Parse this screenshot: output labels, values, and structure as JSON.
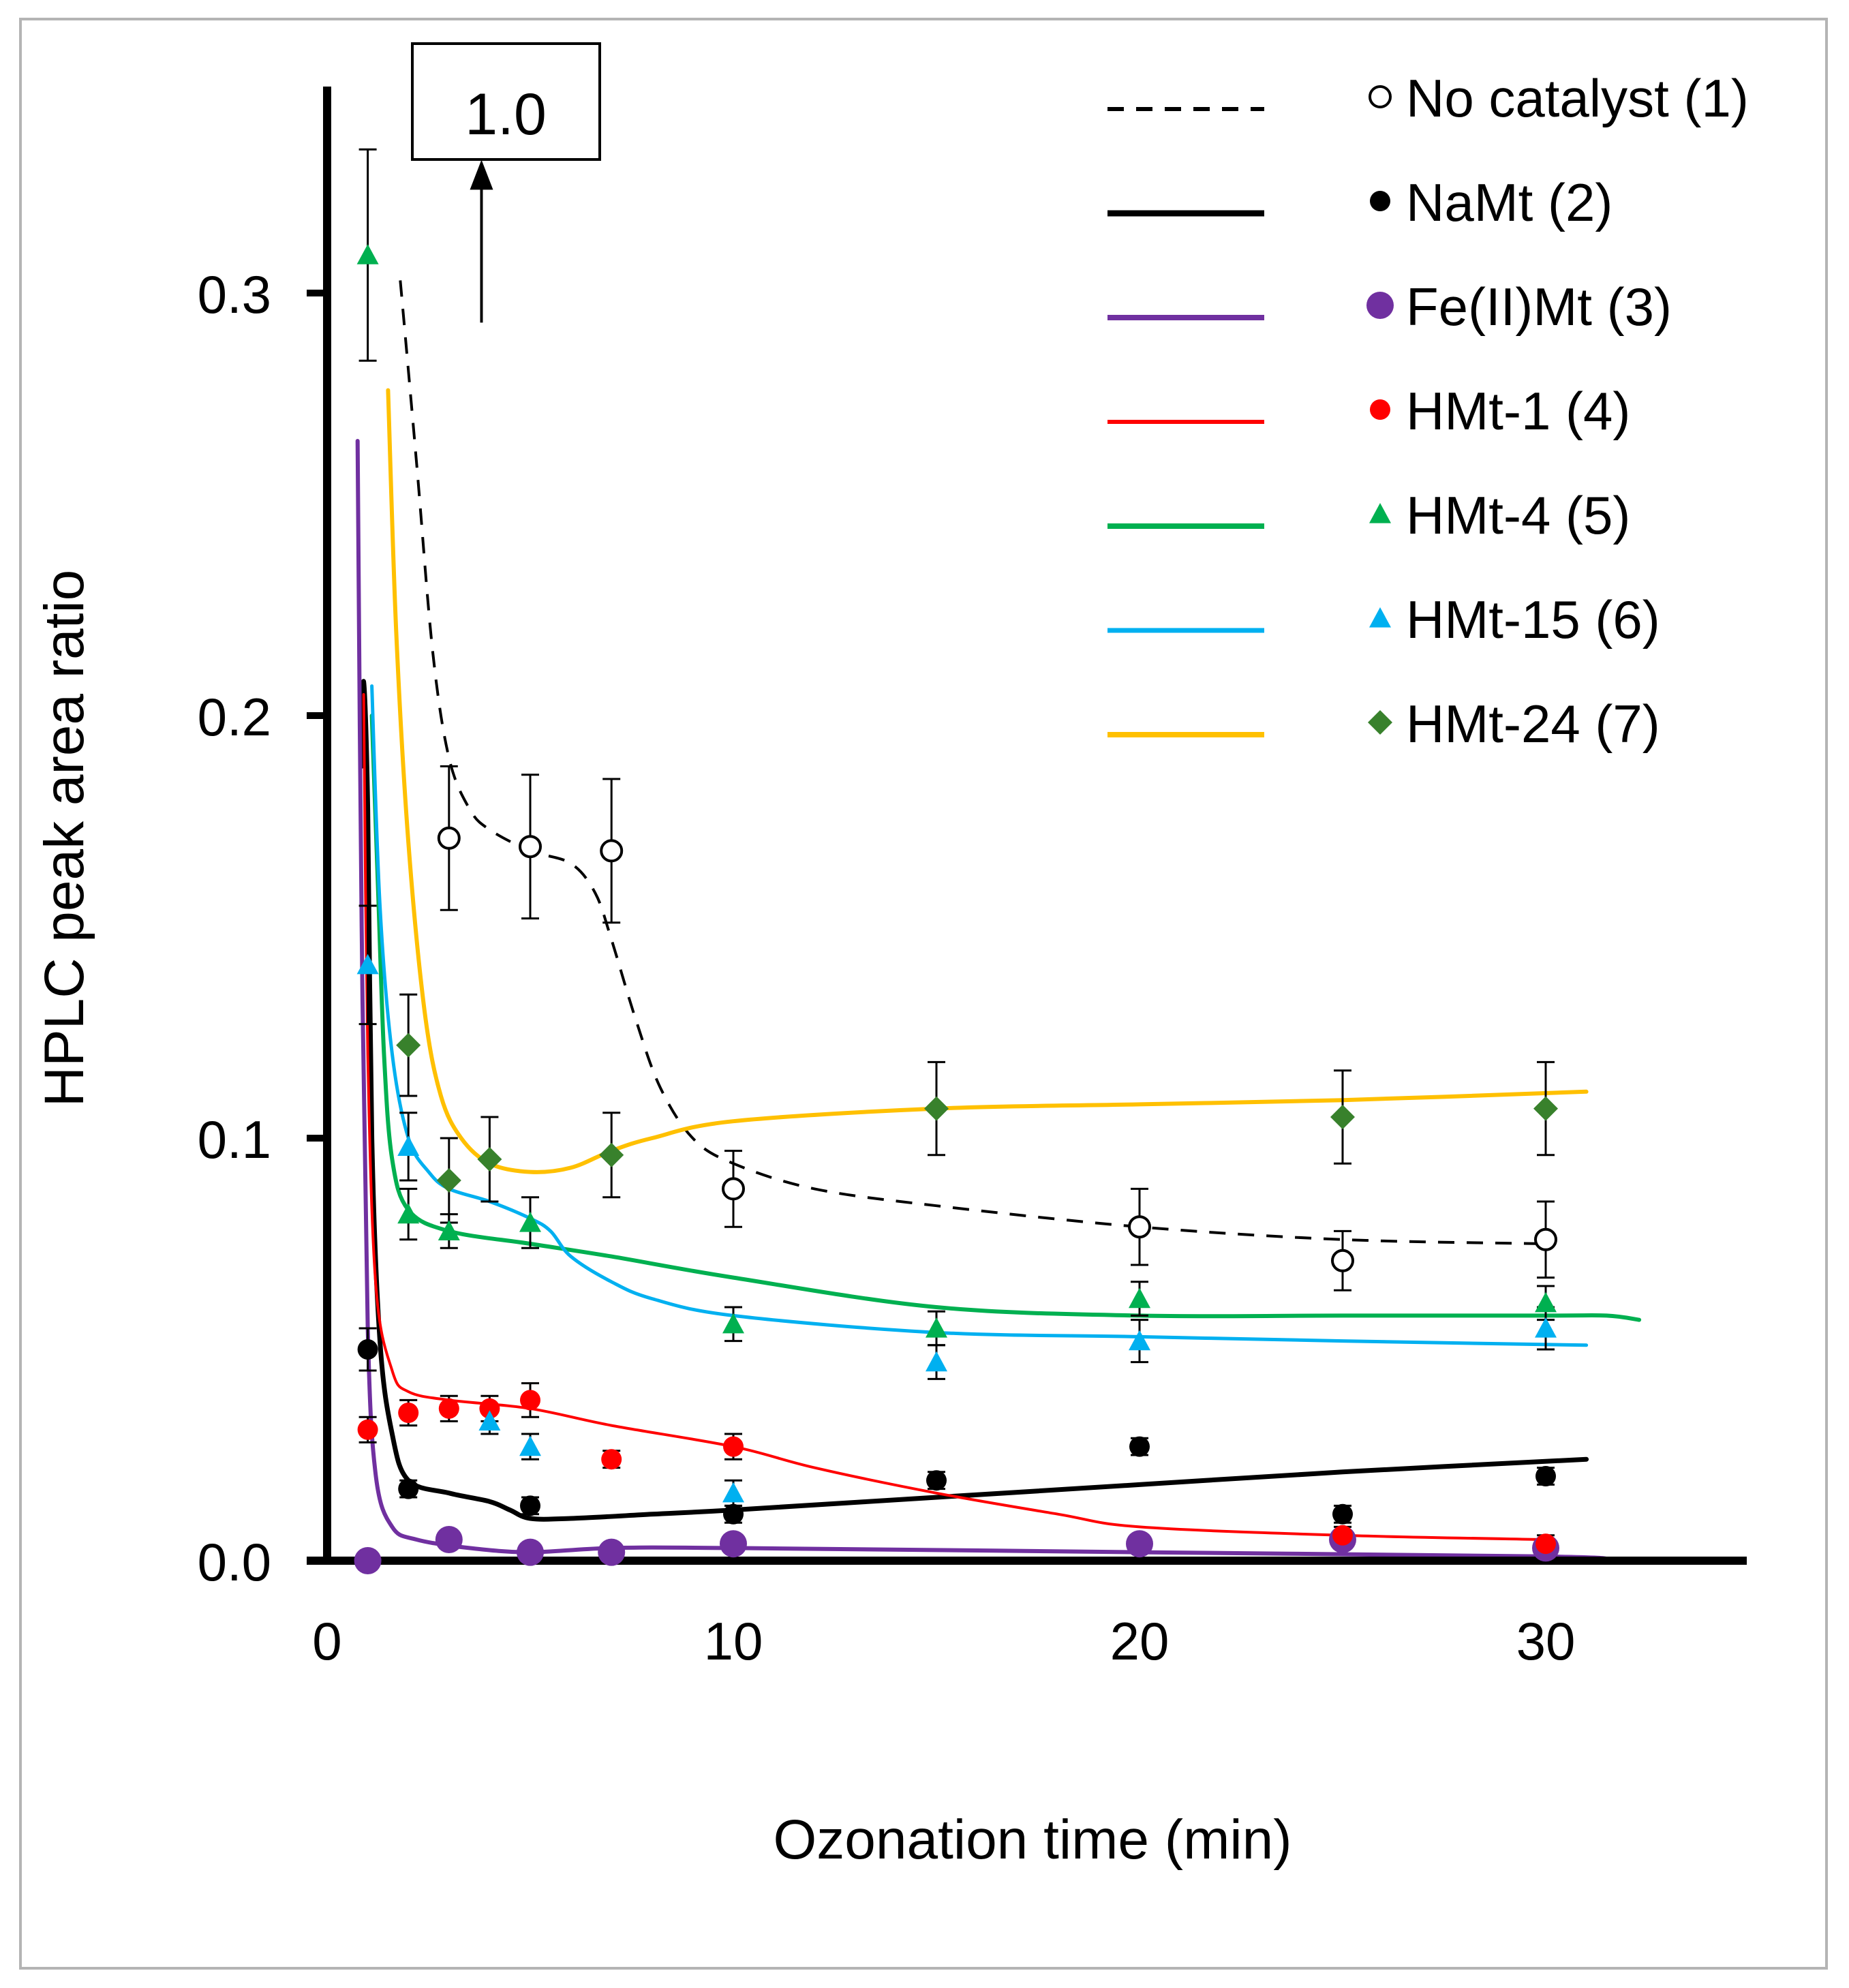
{
  "chart_data": {
    "type": "scatter",
    "xlabel": "Ozonation time (min)",
    "ylabel": "HPLC peak area ratio",
    "xlim": [
      0,
      35
    ],
    "ylim": [
      0,
      0.35
    ],
    "x_ticks": [
      {
        "value": 0,
        "label": "0"
      },
      {
        "value": 10,
        "label": "10"
      },
      {
        "value": 20,
        "label": "20"
      },
      {
        "value": 30,
        "label": "30"
      }
    ],
    "y_ticks": [
      {
        "value": 0,
        "label": "0.0"
      },
      {
        "value": 0.1,
        "label": "0.1"
      },
      {
        "value": 0.2,
        "label": "0.2"
      },
      {
        "value": 0.3,
        "label": "0.3"
      }
    ],
    "annotation": {
      "label": "1.0",
      "arrow_x": 3.8,
      "arrow_y_from": 0.293,
      "arrow_y_to": 0.328
    },
    "legend_position": "top-right",
    "series": [
      {
        "name": "No catalyst (1)",
        "color": "#000000",
        "marker": "open-circle",
        "line": "dashed",
        "line_width": 4,
        "points": [
          [
            3,
            0.171
          ],
          [
            5,
            0.169
          ],
          [
            7,
            0.168
          ],
          [
            10,
            0.088
          ],
          [
            20,
            0.079
          ],
          [
            25,
            0.071
          ],
          [
            30,
            0.076
          ]
        ],
        "errors": [
          0.017,
          0.017,
          0.017,
          0.009,
          0.009,
          0.007,
          0.009
        ],
        "curve": [
          [
            1.8,
            0.303
          ],
          [
            2.2,
            0.26
          ],
          [
            2.6,
            0.215
          ],
          [
            3.0,
            0.19
          ],
          [
            3.5,
            0.178
          ],
          [
            4.0,
            0.173
          ],
          [
            5.0,
            0.168
          ],
          [
            6.0,
            0.165
          ],
          [
            6.6,
            0.158
          ],
          [
            7.0,
            0.147
          ],
          [
            7.6,
            0.128
          ],
          [
            8.2,
            0.112
          ],
          [
            9.0,
            0.1
          ],
          [
            10,
            0.094
          ],
          [
            12,
            0.088
          ],
          [
            15,
            0.084
          ],
          [
            20,
            0.079
          ],
          [
            25,
            0.076
          ],
          [
            30,
            0.075
          ]
        ]
      },
      {
        "name": "NaMt (2)",
        "color": "#000000",
        "marker": "filled-circle",
        "line": "solid",
        "line_width": 7,
        "points": [
          [
            1,
            0.05
          ],
          [
            2,
            0.017
          ],
          [
            5,
            0.013
          ],
          [
            10,
            0.011
          ],
          [
            15,
            0.019
          ],
          [
            20,
            0.027
          ],
          [
            25,
            0.011
          ],
          [
            30,
            0.02
          ]
        ],
        "errors": [
          0.005,
          0.002,
          0.002,
          0.002,
          0.002,
          0.002,
          0.002,
          0.002
        ],
        "curve": [
          [
            0.85,
            0.188
          ],
          [
            0.9,
            0.208
          ],
          [
            1.0,
            0.178
          ],
          [
            1.1,
            0.1
          ],
          [
            1.3,
            0.052
          ],
          [
            1.6,
            0.03
          ],
          [
            2.0,
            0.019
          ],
          [
            3.0,
            0.016
          ],
          [
            4.0,
            0.014
          ],
          [
            4.5,
            0.012
          ],
          [
            5.0,
            0.01
          ],
          [
            6.0,
            0.01
          ],
          [
            8.0,
            0.011
          ],
          [
            10,
            0.012
          ],
          [
            15,
            0.015
          ],
          [
            20,
            0.018
          ],
          [
            25,
            0.021
          ],
          [
            31,
            0.024
          ]
        ]
      },
      {
        "name": "Fe(II)Mt (3)",
        "color": "#7030A0",
        "marker": "filled-circle-large",
        "line": "solid",
        "line_width": 6,
        "points": [
          [
            1,
            0
          ],
          [
            3,
            0.005
          ],
          [
            5,
            0.002
          ],
          [
            7,
            0.002
          ],
          [
            10,
            0.004
          ],
          [
            20,
            0.004
          ],
          [
            25,
            0.005
          ],
          [
            30,
            0.003
          ]
        ],
        "errors": [],
        "curve": [
          [
            0.75,
            0.265
          ],
          [
            0.85,
            0.15
          ],
          [
            1.0,
            0.055
          ],
          [
            1.2,
            0.02
          ],
          [
            1.6,
            0.008
          ],
          [
            2.2,
            0.005
          ],
          [
            3.5,
            0.003
          ],
          [
            5.0,
            0.002
          ],
          [
            7.0,
            0.003
          ],
          [
            10,
            0.003
          ],
          [
            20,
            0.002
          ],
          [
            30,
            0.001
          ],
          [
            31.6,
            0.0003
          ]
        ]
      },
      {
        "name": "HMt-1 (4)",
        "color": "#FF0000",
        "marker": "filled-circle",
        "line": "solid",
        "line_width": 4,
        "points": [
          [
            1,
            0.031
          ],
          [
            2,
            0.035
          ],
          [
            3,
            0.036
          ],
          [
            4,
            0.036
          ],
          [
            5,
            0.038
          ],
          [
            7,
            0.024
          ],
          [
            10,
            0.027
          ],
          [
            25,
            0.006
          ],
          [
            30,
            0.004
          ]
        ],
        "errors": [
          0.003,
          0.003,
          0.003,
          0.003,
          0.004,
          0.002,
          0.003,
          0.002,
          0.002
        ],
        "curve": [
          [
            0.9,
            0.205
          ],
          [
            1.0,
            0.12
          ],
          [
            1.2,
            0.065
          ],
          [
            1.6,
            0.045
          ],
          [
            2.0,
            0.04
          ],
          [
            3.0,
            0.038
          ],
          [
            5.0,
            0.036
          ],
          [
            7.0,
            0.032
          ],
          [
            10,
            0.027
          ],
          [
            12,
            0.022
          ],
          [
            15,
            0.016
          ],
          [
            18,
            0.011
          ],
          [
            20,
            0.008
          ],
          [
            25,
            0.006
          ],
          [
            30,
            0.005
          ]
        ]
      },
      {
        "name": "HMt-4 (5)",
        "color": "#00B050",
        "marker": "filled-triangle",
        "line": "solid",
        "line_width": 6,
        "points": [
          [
            1,
            0.309
          ],
          [
            2,
            0.082
          ],
          [
            3,
            0.078
          ],
          [
            5,
            0.08
          ],
          [
            10,
            0.056
          ],
          [
            15,
            0.055
          ],
          [
            20,
            0.062
          ],
          [
            30,
            0.061
          ]
        ],
        "errors": [
          0.025,
          0.006,
          0.004,
          0.006,
          0.004,
          0.004,
          0.004,
          0.004
        ],
        "curve": [
          [
            1.1,
            0.2
          ],
          [
            1.25,
            0.16
          ],
          [
            1.4,
            0.12
          ],
          [
            1.6,
            0.095
          ],
          [
            2.0,
            0.083
          ],
          [
            3.0,
            0.078
          ],
          [
            5.0,
            0.075
          ],
          [
            7.0,
            0.072
          ],
          [
            10,
            0.067
          ],
          [
            15,
            0.06
          ],
          [
            20,
            0.058
          ],
          [
            25,
            0.058
          ],
          [
            30,
            0.058
          ],
          [
            31.5,
            0.058
          ],
          [
            32.3,
            0.057
          ]
        ]
      },
      {
        "name": "HMt-15 (6)",
        "color": "#00B0F0",
        "marker": "filled-triangle",
        "line": "solid",
        "line_width": 5,
        "points": [
          [
            1,
            0.141
          ],
          [
            2,
            0.098
          ],
          [
            4,
            0.033
          ],
          [
            5,
            0.027
          ],
          [
            10,
            0.016
          ],
          [
            15,
            0.047
          ],
          [
            20,
            0.052
          ],
          [
            30,
            0.055
          ]
        ],
        "errors": [
          0.014,
          0.008,
          0.003,
          0.003,
          0.003,
          0.004,
          0.005,
          0.005
        ],
        "curve": [
          [
            1.1,
            0.207
          ],
          [
            1.3,
            0.155
          ],
          [
            1.6,
            0.12
          ],
          [
            2.0,
            0.1
          ],
          [
            2.5,
            0.092
          ],
          [
            3.0,
            0.088
          ],
          [
            4.0,
            0.085
          ],
          [
            5.0,
            0.081
          ],
          [
            5.5,
            0.078
          ],
          [
            6.0,
            0.072
          ],
          [
            7.0,
            0.066
          ],
          [
            8.0,
            0.062
          ],
          [
            10,
            0.058
          ],
          [
            15,
            0.054
          ],
          [
            20,
            0.053
          ],
          [
            25,
            0.052
          ],
          [
            31,
            0.051
          ]
        ]
      },
      {
        "name": "HMt-24 (7)",
        "color": "#FFC000",
        "marker": "filled-diamond",
        "marker_color": "#38812C",
        "line": "solid",
        "line_width": 6,
        "points": [
          [
            2,
            0.122
          ],
          [
            3,
            0.09
          ],
          [
            4,
            0.095
          ],
          [
            7,
            0.096
          ],
          [
            15,
            0.107
          ],
          [
            25,
            0.105
          ],
          [
            30,
            0.107
          ]
        ],
        "errors": [
          0.012,
          0.01,
          0.01,
          0.01,
          0.011,
          0.011,
          0.011
        ],
        "curve": [
          [
            1.5,
            0.277
          ],
          [
            1.7,
            0.22
          ],
          [
            2.0,
            0.17
          ],
          [
            2.4,
            0.13
          ],
          [
            2.8,
            0.11
          ],
          [
            3.3,
            0.1
          ],
          [
            4.0,
            0.094
          ],
          [
            5.0,
            0.092
          ],
          [
            6.0,
            0.093
          ],
          [
            7.0,
            0.097
          ],
          [
            8.0,
            0.1
          ],
          [
            10,
            0.104
          ],
          [
            15,
            0.107
          ],
          [
            20,
            0.108
          ],
          [
            25,
            0.109
          ],
          [
            31,
            0.111
          ]
        ]
      }
    ]
  }
}
